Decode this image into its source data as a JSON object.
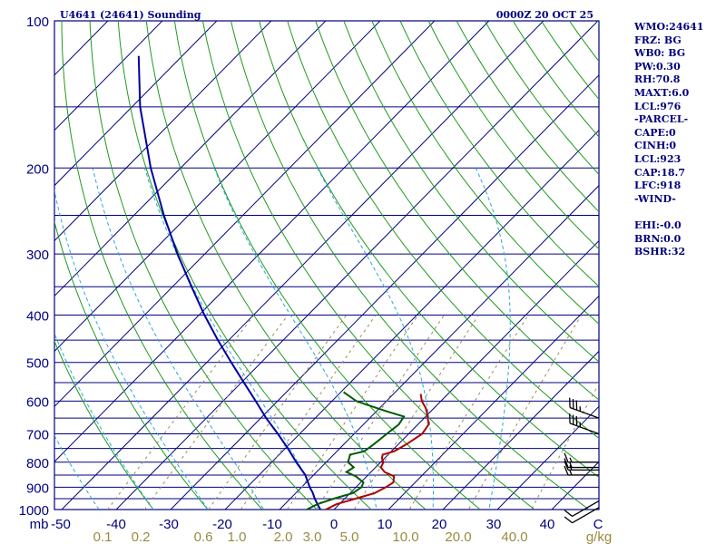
{
  "header": {
    "station": "U4641 (24641) Sounding",
    "time": "0000Z 20 OCT 25"
  },
  "stats": [
    "WMO:24641",
    "FRZ: BG",
    "WB0: BG",
    "PW:0.30",
    "RH:70.8",
    "MAXT:6.0",
    "LCL:976",
    "-PARCEL-",
    "CAPE:0",
    "CINH:0",
    "LCL:923",
    "CAP:18.7",
    "LFC:918",
    "-WIND-",
    "",
    "EHI:-0.0",
    "BRN:0.0",
    "BSHR:32"
  ],
  "colors": {
    "frame": "#00007e",
    "isobar": "#00007e",
    "isotherm": "#00007e",
    "dry_adiabat": "#1e9a1e",
    "moist_adiabat": "#2aa8d8",
    "mixing_ratio": "#9a8a5a",
    "temperature": "#b00000",
    "dewpoint": "#005a00",
    "parcel": "#0000a0",
    "wind": "#000000",
    "pressure_label": "#00007e",
    "temp_label": "#00007e",
    "mixing_label": "#9a8a40"
  },
  "chart_data": {
    "type": "skew-t log-p sounding",
    "pressure_unit": "mb",
    "temperature_unit": "C",
    "mixing_ratio_unit": "g/kg",
    "ylim": [
      1000,
      100
    ],
    "xlim": [
      -50,
      50
    ],
    "pressure_tick_labels": [
      "100",
      "200",
      "300",
      "400",
      "500",
      "600",
      "700",
      "800",
      "900",
      "1000"
    ],
    "pressure_ticks": [
      100,
      200,
      300,
      400,
      500,
      600,
      700,
      800,
      900,
      1000
    ],
    "isobars": [
      100,
      150,
      200,
      250,
      300,
      350,
      400,
      450,
      500,
      550,
      600,
      650,
      700,
      750,
      800,
      850,
      900,
      950,
      1000
    ],
    "temperature_tick_labels": [
      "mb",
      "-50",
      "-40",
      "-30",
      "-20",
      "-10",
      "0",
      "10",
      "20",
      "30",
      "40",
      "C"
    ],
    "temperature_ticks": [
      -50,
      -40,
      -30,
      -20,
      -10,
      0,
      10,
      20,
      30,
      40,
      50
    ],
    "mixing_ratio_tick_labels": [
      "0.1",
      "0.2",
      "0.6",
      "1.0",
      "2.0",
      "3.0",
      "5.0",
      "10.0",
      "20.0",
      "40.0",
      "g/kg"
    ],
    "mixing_ratio_ticks": [
      0.1,
      0.2,
      0.6,
      1.0,
      2.0,
      3.0,
      5.0,
      10.0,
      20.0,
      40.0
    ],
    "temperature_profile": [
      {
        "p": 1000,
        "t": -1.5
      },
      {
        "p": 975,
        "t": -0.5
      },
      {
        "p": 950,
        "t": 2.0
      },
      {
        "p": 925,
        "t": 4.5
      },
      {
        "p": 900,
        "t": 5.5
      },
      {
        "p": 880,
        "t": 6.0
      },
      {
        "p": 855,
        "t": 5.0
      },
      {
        "p": 838,
        "t": 2.5
      },
      {
        "p": 820,
        "t": 1.0
      },
      {
        "p": 800,
        "t": 0.5
      },
      {
        "p": 785,
        "t": -0.5
      },
      {
        "p": 772,
        "t": -1.0
      },
      {
        "p": 760,
        "t": 0.5
      },
      {
        "p": 735,
        "t": 1.5
      },
      {
        "p": 700,
        "t": 2.5
      },
      {
        "p": 670,
        "t": 2.0
      },
      {
        "p": 640,
        "t": 0.0
      },
      {
        "p": 620,
        "t": -1.5
      },
      {
        "p": 600,
        "t": -3.5
      },
      {
        "p": 580,
        "t": -5.0
      }
    ],
    "dewpoint_profile": [
      {
        "p": 1000,
        "t": -5.0
      },
      {
        "p": 975,
        "t": -4.0
      },
      {
        "p": 950,
        "t": -2.0
      },
      {
        "p": 925,
        "t": 0.5
      },
      {
        "p": 900,
        "t": 1.0
      },
      {
        "p": 880,
        "t": 0.5
      },
      {
        "p": 855,
        "t": -2.0
      },
      {
        "p": 838,
        "t": -4.5
      },
      {
        "p": 820,
        "t": -4.0
      },
      {
        "p": 800,
        "t": -6.0
      },
      {
        "p": 785,
        "t": -6.5
      },
      {
        "p": 772,
        "t": -7.0
      },
      {
        "p": 760,
        "t": -5.0
      },
      {
        "p": 735,
        "t": -4.5
      },
      {
        "p": 700,
        "t": -4.0
      },
      {
        "p": 670,
        "t": -3.5
      },
      {
        "p": 645,
        "t": -4.0
      },
      {
        "p": 630,
        "t": -8.0
      },
      {
        "p": 610,
        "t": -13.0
      },
      {
        "p": 600,
        "t": -15.5
      },
      {
        "p": 575,
        "t": -19.5
      }
    ],
    "parcel_profile": [
      {
        "p": 1000,
        "t": -2.5
      },
      {
        "p": 975,
        "t": -4.0
      },
      {
        "p": 950,
        "t": -5.5
      },
      {
        "p": 923,
        "t": -7.0
      },
      {
        "p": 900,
        "t": -8.5
      },
      {
        "p": 850,
        "t": -11.5
      },
      {
        "p": 800,
        "t": -15.5
      },
      {
        "p": 750,
        "t": -19.5
      },
      {
        "p": 700,
        "t": -24.0
      },
      {
        "p": 650,
        "t": -29.0
      },
      {
        "p": 600,
        "t": -34.0
      },
      {
        "p": 550,
        "t": -39.5
      },
      {
        "p": 500,
        "t": -45.5
      },
      {
        "p": 450,
        "t": -52.0
      },
      {
        "p": 400,
        "t": -59.0
      },
      {
        "p": 350,
        "t": -66.5
      },
      {
        "p": 300,
        "t": -75.0
      },
      {
        "p": 250,
        "t": -84.5
      },
      {
        "p": 200,
        "t": -95.5
      },
      {
        "p": 150,
        "t": -108.5
      },
      {
        "p": 118,
        "t": -118.0
      }
    ],
    "dry_adiabats_theta_K": [
      240,
      250,
      260,
      270,
      280,
      290,
      300,
      310,
      320,
      330,
      340,
      350,
      360,
      370,
      380,
      390,
      400,
      410,
      420,
      430,
      440,
      450,
      460,
      470,
      480,
      490
    ],
    "moist_adiabats_start_C": [
      -40,
      -30,
      -20,
      -10,
      0,
      10,
      20,
      30
    ],
    "mixing_ratio_lines": [
      0.1,
      0.2,
      0.6,
      1.0,
      2.0,
      3.0,
      5.0,
      10.0,
      20.0,
      40.0
    ],
    "wind_barbs": [
      {
        "p": 990,
        "dir": 300,
        "kt": 10
      },
      {
        "p": 960,
        "dir": 300,
        "kt": 10
      },
      {
        "p": 850,
        "dir": 270,
        "kt": 15
      },
      {
        "p": 830,
        "dir": 270,
        "kt": 15
      },
      {
        "p": 820,
        "dir": 270,
        "kt": 15
      },
      {
        "p": 800,
        "dir": 270,
        "kt": 15
      },
      {
        "p": 700,
        "dir": 250,
        "kt": 35
      },
      {
        "p": 650,
        "dir": 250,
        "kt": 35
      }
    ]
  }
}
